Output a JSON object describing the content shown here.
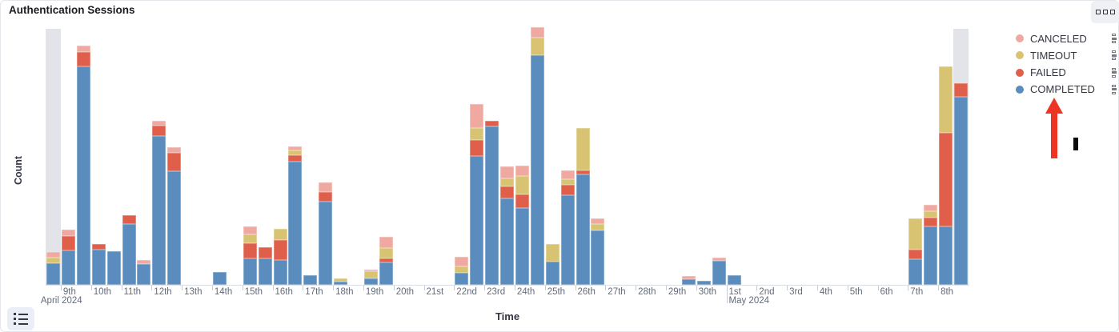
{
  "panel": {
    "title": "Authentication Sessions"
  },
  "buttons": {
    "panel_options": "panel-options-menu",
    "legend_toggle": "toggle-legend"
  },
  "legend": {
    "position": "right",
    "items": [
      {
        "label": "CANCELED",
        "color": "#efa9a1"
      },
      {
        "label": "TIMEOUT",
        "color": "#d8c372"
      },
      {
        "label": "FAILED",
        "color": "#df5f4b"
      },
      {
        "label": "COMPLETED",
        "color": "#5a8dbe"
      }
    ]
  },
  "annotations": {
    "arrow": {
      "shape": "red upward arrow",
      "color": "#ee3524",
      "points_at": "COMPLETED legend item"
    },
    "black_mark": {
      "shape": "small black rectangle",
      "color": "#0c0c0c"
    }
  },
  "chart_data": {
    "type": "bar",
    "stacked": true,
    "title": "Authentication Sessions",
    "xlabel": "Time",
    "ylabel": "Count",
    "grid": false,
    "legend_position": "right",
    "y_axis_tick_labels": "none (unlabeled axis; values below are relative units estimated from bar heights)",
    "ylim": [
      0,
      330
    ],
    "x_unit": "12-hour buckets (AM/PM per day)",
    "series_order_bottom_to_top": [
      "COMPLETED",
      "FAILED",
      "TIMEOUT",
      "CANCELED"
    ],
    "colors": {
      "COMPLETED": "#5a8dbe",
      "FAILED": "#df5f4b",
      "TIMEOUT": "#d8c372",
      "CANCELED": "#efa9a1",
      "partial_bucket_band": "#e3e4e9"
    },
    "x_ticks": [
      {
        "label": "9th",
        "sub": "April 2024"
      },
      {
        "label": "10th"
      },
      {
        "label": "11th"
      },
      {
        "label": "12th"
      },
      {
        "label": "13th"
      },
      {
        "label": "14th"
      },
      {
        "label": "15th"
      },
      {
        "label": "16th"
      },
      {
        "label": "17th"
      },
      {
        "label": "18th"
      },
      {
        "label": "19th"
      },
      {
        "label": "20th"
      },
      {
        "label": "21st"
      },
      {
        "label": "22nd"
      },
      {
        "label": "23rd"
      },
      {
        "label": "24th"
      },
      {
        "label": "25th"
      },
      {
        "label": "26th"
      },
      {
        "label": "27th"
      },
      {
        "label": "28th"
      },
      {
        "label": "29th"
      },
      {
        "label": "30th"
      },
      {
        "label": "1st",
        "sub": "May 2024",
        "tall": true
      },
      {
        "label": "2nd"
      },
      {
        "label": "3rd"
      },
      {
        "label": "4th"
      },
      {
        "label": "5th"
      },
      {
        "label": "6th"
      },
      {
        "label": "7th"
      },
      {
        "label": "8th"
      }
    ],
    "partial_buckets": [
      0,
      60
    ],
    "buckets": [
      {
        "t": 0,
        "time": "Apr 8 PM",
        "completed": 27,
        "failed": 0,
        "timeout": 7,
        "canceled": 7
      },
      {
        "t": 1,
        "time": "Apr 9 AM",
        "completed": 43,
        "failed": 18,
        "timeout": 0,
        "canceled": 8
      },
      {
        "t": 2,
        "time": "Apr 9 PM",
        "completed": 273,
        "failed": 18,
        "timeout": 0,
        "canceled": 8
      },
      {
        "t": 3,
        "time": "Apr 10 AM",
        "completed": 44,
        "failed": 7,
        "timeout": 0,
        "canceled": 0
      },
      {
        "t": 4,
        "time": "Apr 10 PM",
        "completed": 42,
        "failed": 0,
        "timeout": 0,
        "canceled": 0
      },
      {
        "t": 5,
        "time": "Apr 11 AM",
        "completed": 76,
        "failed": 11,
        "timeout": 0,
        "canceled": 0
      },
      {
        "t": 6,
        "time": "Apr 11 PM",
        "completed": 26,
        "failed": 0,
        "timeout": 0,
        "canceled": 5
      },
      {
        "t": 7,
        "time": "Apr 12 AM",
        "completed": 186,
        "failed": 13,
        "timeout": 0,
        "canceled": 6
      },
      {
        "t": 8,
        "time": "Apr 12 PM",
        "completed": 142,
        "failed": 23,
        "timeout": 0,
        "canceled": 7
      },
      {
        "t": 11,
        "time": "Apr 14 AM",
        "completed": 16,
        "failed": 0,
        "timeout": 0,
        "canceled": 0
      },
      {
        "t": 13,
        "time": "Apr 15 AM",
        "completed": 33,
        "failed": 19,
        "timeout": 11,
        "canceled": 10
      },
      {
        "t": 14,
        "time": "Apr 15 PM",
        "completed": 33,
        "failed": 14,
        "timeout": 0,
        "canceled": 0
      },
      {
        "t": 15,
        "time": "Apr 16 AM",
        "completed": 31,
        "failed": 25,
        "timeout": 14,
        "canceled": 0
      },
      {
        "t": 16,
        "time": "Apr 16 PM",
        "completed": 154,
        "failed": 8,
        "timeout": 6,
        "canceled": 5
      },
      {
        "t": 17,
        "time": "Apr 17 AM",
        "completed": 12,
        "failed": 0,
        "timeout": 0,
        "canceled": 0
      },
      {
        "t": 18,
        "time": "Apr 17 PM",
        "completed": 104,
        "failed": 12,
        "timeout": 0,
        "canceled": 12
      },
      {
        "t": 19,
        "time": "Apr 18 AM",
        "completed": 4,
        "failed": 0,
        "timeout": 4,
        "canceled": 0
      },
      {
        "t": 21,
        "time": "Apr 19 AM",
        "completed": 8,
        "failed": 0,
        "timeout": 9,
        "canceled": 2
      },
      {
        "t": 22,
        "time": "Apr 19 PM",
        "completed": 28,
        "failed": 5,
        "timeout": 13,
        "canceled": 14
      },
      {
        "t": 27,
        "time": "Apr 22 AM",
        "completed": 15,
        "failed": 0,
        "timeout": 8,
        "canceled": 12
      },
      {
        "t": 28,
        "time": "Apr 22 PM",
        "completed": 161,
        "failed": 20,
        "timeout": 15,
        "canceled": 30
      },
      {
        "t": 29,
        "time": "Apr 23 AM",
        "completed": 198,
        "failed": 7,
        "timeout": 0,
        "canceled": 0
      },
      {
        "t": 30,
        "time": "Apr 23 PM",
        "completed": 108,
        "failed": 15,
        "timeout": 10,
        "canceled": 15
      },
      {
        "t": 31,
        "time": "Apr 24 AM",
        "completed": 96,
        "failed": 17,
        "timeout": 23,
        "canceled": 13
      },
      {
        "t": 32,
        "time": "Apr 24 PM",
        "completed": 287,
        "failed": 0,
        "timeout": 22,
        "canceled": 13
      },
      {
        "t": 33,
        "time": "Apr 25 AM",
        "completed": 29,
        "failed": 0,
        "timeout": 22,
        "canceled": 0
      },
      {
        "t": 34,
        "time": "Apr 25 PM",
        "completed": 112,
        "failed": 13,
        "timeout": 7,
        "canceled": 11
      },
      {
        "t": 35,
        "time": "Apr 26 AM",
        "completed": 138,
        "failed": 5,
        "timeout": 53,
        "canceled": 0
      },
      {
        "t": 36,
        "time": "Apr 26 PM",
        "completed": 68,
        "failed": 0,
        "timeout": 8,
        "canceled": 7
      },
      {
        "t": 42,
        "time": "Apr 29 PM",
        "completed": 7,
        "failed": 0,
        "timeout": 0,
        "canceled": 4
      },
      {
        "t": 43,
        "time": "Apr 30 AM",
        "completed": 5,
        "failed": 0,
        "timeout": 0,
        "canceled": 0
      },
      {
        "t": 44,
        "time": "Apr 30 PM",
        "completed": 30,
        "failed": 0,
        "timeout": 0,
        "canceled": 4
      },
      {
        "t": 45,
        "time": "May 1 AM",
        "completed": 12,
        "failed": 0,
        "timeout": 0,
        "canceled": 0
      },
      {
        "t": 57,
        "time": "May 7 AM",
        "completed": 32,
        "failed": 12,
        "timeout": 39,
        "canceled": 0
      },
      {
        "t": 58,
        "time": "May 7 PM",
        "completed": 73,
        "failed": 11,
        "timeout": 8,
        "canceled": 8
      },
      {
        "t": 59,
        "time": "May 8 AM",
        "completed": 73,
        "failed": 117,
        "timeout": 83,
        "canceled": 0
      },
      {
        "t": 60,
        "time": "May 8 PM",
        "completed": 235,
        "failed": 17,
        "timeout": 0,
        "canceled": 0
      }
    ]
  }
}
